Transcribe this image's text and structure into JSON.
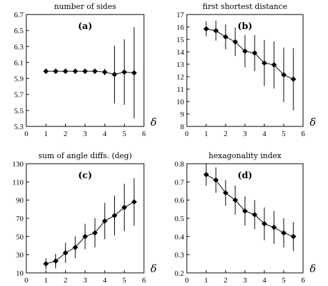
{
  "chart_data": [
    {
      "type": "line",
      "panel_label": "(a)",
      "title": "number of sides",
      "xlabel": "δ",
      "xlim": [
        0,
        6
      ],
      "ylim": [
        5.3,
        6.7
      ],
      "xticks": [
        0,
        1,
        2,
        3,
        4,
        5,
        6
      ],
      "yticks": [
        5.3,
        5.5,
        5.7,
        5.9,
        6.1,
        6.3,
        6.5,
        6.7
      ],
      "ytick_labels": [
        "5.3",
        "5.5",
        "5.7",
        "5.9",
        "6.1",
        "6.3",
        "6.5",
        "6.7"
      ],
      "x": [
        1,
        1.5,
        2,
        2.5,
        3,
        3.5,
        4,
        4.5,
        5,
        5.5
      ],
      "y": [
        5.99,
        5.99,
        5.99,
        5.99,
        5.99,
        5.99,
        5.98,
        5.95,
        5.98,
        5.97
      ],
      "err": [
        0.01,
        0.01,
        0.01,
        0.01,
        0.01,
        0.01,
        0.04,
        0.36,
        0.41,
        0.57
      ]
    },
    {
      "type": "line",
      "panel_label": "(b)",
      "title": "first shortest distance",
      "xlabel": "δ",
      "xlim": [
        0,
        6
      ],
      "ylim": [
        8,
        17
      ],
      "xticks": [
        0,
        1,
        2,
        3,
        4,
        5,
        6
      ],
      "yticks": [
        8,
        9,
        10,
        11,
        12,
        13,
        14,
        15,
        16,
        17
      ],
      "ytick_labels": [
        "8",
        "9",
        "10",
        "11",
        "12",
        "13",
        "14",
        "15",
        "16",
        "17"
      ],
      "x": [
        1,
        1.5,
        2,
        2.5,
        3,
        3.5,
        4,
        4.5,
        5,
        5.5
      ],
      "y": [
        15.85,
        15.7,
        15.2,
        14.8,
        14.05,
        13.9,
        13.1,
        12.95,
        12.15,
        11.8
      ],
      "err": [
        0.6,
        0.8,
        1.0,
        1.15,
        1.3,
        1.45,
        1.85,
        1.9,
        2.2,
        2.5
      ]
    },
    {
      "type": "line",
      "panel_label": "(c)",
      "title": "sum of angle diffs. (deg)",
      "xlabel": "δ",
      "xlim": [
        0,
        6
      ],
      "ylim": [
        10,
        130
      ],
      "xticks": [
        0,
        1,
        2,
        3,
        4,
        5,
        6
      ],
      "yticks": [
        10,
        30,
        50,
        70,
        90,
        110,
        130
      ],
      "ytick_labels": [
        "10",
        "30",
        "50",
        "70",
        "90",
        "110",
        "130"
      ],
      "x": [
        1,
        1.5,
        2,
        2.5,
        3,
        3.5,
        4,
        4.5,
        5,
        5.5
      ],
      "y": [
        20,
        23,
        32,
        38,
        50,
        54,
        67,
        73,
        82,
        88
      ],
      "err": [
        6,
        8,
        11,
        12,
        14,
        16,
        20,
        22,
        26,
        26
      ]
    },
    {
      "type": "line",
      "panel_label": "(d)",
      "title": "hexagonality index",
      "xlabel": "δ",
      "xlim": [
        0,
        6
      ],
      "ylim": [
        0.2,
        0.8
      ],
      "xticks": [
        0,
        1,
        2,
        3,
        4,
        5,
        6
      ],
      "yticks": [
        0.2,
        0.3,
        0.4,
        0.5,
        0.6,
        0.7,
        0.8
      ],
      "ytick_labels": [
        "0.2",
        "0.3",
        "0.4",
        "0.5",
        "0.6",
        "0.7",
        "0.8"
      ],
      "x": [
        1,
        1.5,
        2,
        2.5,
        3,
        3.5,
        4,
        4.5,
        5,
        5.5
      ],
      "y": [
        0.74,
        0.71,
        0.64,
        0.6,
        0.54,
        0.52,
        0.47,
        0.45,
        0.42,
        0.4
      ],
      "err": [
        0.06,
        0.07,
        0.07,
        0.08,
        0.08,
        0.08,
        0.09,
        0.09,
        0.08,
        0.08
      ]
    }
  ]
}
